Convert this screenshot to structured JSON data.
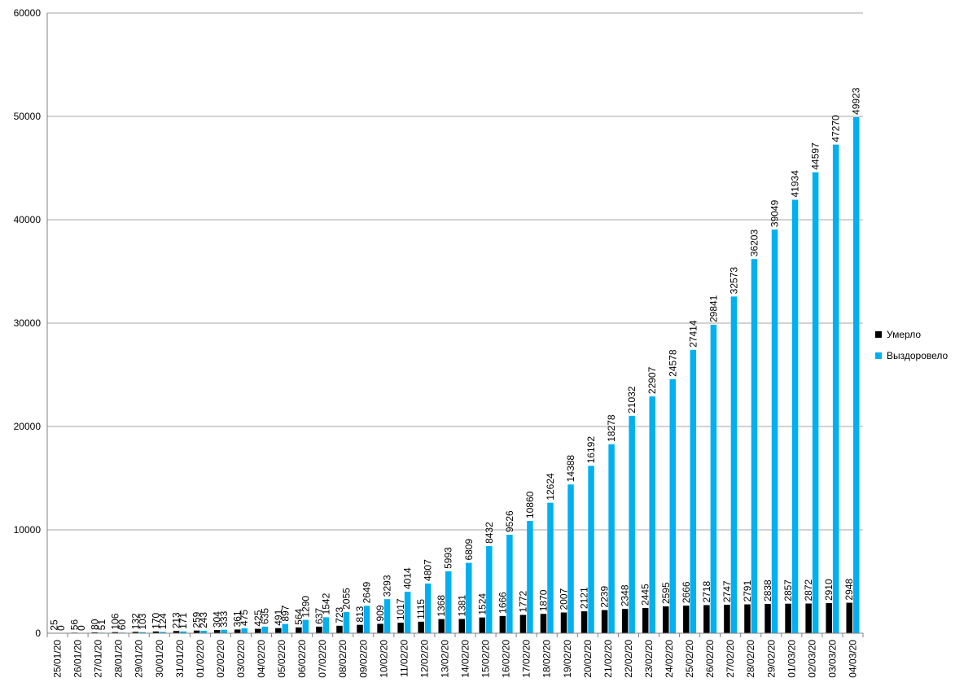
{
  "chart_data": {
    "type": "bar",
    "title": "",
    "xlabel": "",
    "ylabel": "",
    "ylim": [
      0,
      60000
    ],
    "yticks": [
      0,
      10000,
      20000,
      30000,
      40000,
      50000,
      60000
    ],
    "grid": true,
    "legend_position": "right",
    "categories": [
      "25/01/20",
      "26/01/20",
      "27/01/20",
      "28/01/20",
      "29/01/20",
      "30/01/20",
      "31/01/20",
      "01/02/20",
      "02/02/20",
      "03/02/20",
      "04/02/20",
      "05/02/20",
      "06/02/20",
      "07/02/20",
      "08/02/20",
      "09/02/20",
      "10/02/20",
      "11/02/20",
      "12/02/20",
      "13/02/20",
      "14/02/20",
      "15/02/20",
      "16/02/20",
      "17/02/20",
      "18/02/20",
      "19/02/20",
      "20/02/20",
      "21/02/20",
      "22/02/20",
      "23/02/20",
      "24/02/20",
      "25/02/20",
      "26/02/20",
      "27/02/20",
      "28/02/20",
      "29/02/20",
      "01/03/20",
      "02/03/20",
      "03/03/20",
      "04/03/20"
    ],
    "series": [
      {
        "name": "Умерло",
        "color": "#000000",
        "values": [
          25,
          56,
          80,
          106,
          132,
          170,
          213,
          259,
          304,
          361,
          425,
          491,
          564,
          637,
          723,
          813,
          909,
          1017,
          1115,
          1368,
          1381,
          1524,
          1666,
          1772,
          1870,
          2007,
          2121,
          2239,
          2348,
          2445,
          2595,
          2666,
          2718,
          2747,
          2791,
          2838,
          2857,
          2872,
          2910,
          2948
        ]
      },
      {
        "name": "Выздоровело",
        "color": "#00b0f0",
        "values": [
          0,
          0,
          51,
          60,
          103,
          124,
          171,
          243,
          333,
          475,
          635,
          897,
          1290,
          1542,
          2055,
          2649,
          3293,
          4014,
          4807,
          5993,
          6809,
          8432,
          9526,
          10860,
          12624,
          14388,
          16192,
          18278,
          21032,
          22907,
          24578,
          27414,
          29841,
          32573,
          36203,
          39049,
          41934,
          44597,
          47270,
          49923
        ]
      }
    ]
  }
}
